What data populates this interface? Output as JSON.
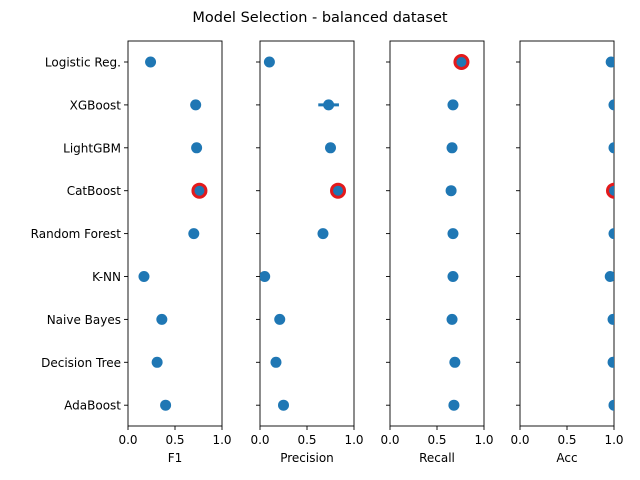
{
  "chart_data": {
    "type": "scatter",
    "title": "Model Selection - balanced dataset",
    "categories": [
      "Logistic Reg.",
      "XGBoost",
      "LightGBM",
      "CatBoost",
      "Random Forest",
      "K-NN",
      "Naive Bayes",
      "Decision Tree",
      "AdaBoost"
    ],
    "xlim": [
      0,
      1
    ],
    "xticks": [
      "0.0",
      "0.5",
      "1.0"
    ],
    "grid": false,
    "colors": {
      "point": "#1f77b4",
      "highlight": "#e31a1c"
    },
    "panels": [
      {
        "xlabel": "F1",
        "values": [
          0.24,
          0.72,
          0.73,
          0.76,
          0.7,
          0.17,
          0.36,
          0.31,
          0.4
        ],
        "errors": [
          0.01,
          0.01,
          0.01,
          0.02,
          0.01,
          0.01,
          0.01,
          0.01,
          0.04
        ],
        "best": "CatBoost"
      },
      {
        "xlabel": "Precision",
        "values": [
          0.1,
          0.73,
          0.75,
          0.83,
          0.67,
          0.05,
          0.21,
          0.17,
          0.25
        ],
        "errors": [
          0.01,
          0.11,
          0.01,
          0.02,
          0.01,
          0.01,
          0.01,
          0.01,
          0.01
        ],
        "best": "CatBoost"
      },
      {
        "xlabel": "Recall",
        "values": [
          0.76,
          0.67,
          0.66,
          0.65,
          0.67,
          0.67,
          0.66,
          0.69,
          0.68
        ],
        "errors": [
          0.01,
          0.01,
          0.01,
          0.01,
          0.01,
          0.01,
          0.04,
          0.01,
          0.03
        ],
        "best": "Logistic Reg."
      },
      {
        "xlabel": "Acc",
        "values": [
          0.97,
          1.0,
          1.0,
          1.0,
          1.0,
          0.96,
          0.99,
          0.99,
          1.0
        ],
        "errors": [
          0.0,
          0.0,
          0.0,
          0.0,
          0.0,
          0.0,
          0.0,
          0.0,
          0.0
        ],
        "best": "CatBoost"
      }
    ]
  }
}
